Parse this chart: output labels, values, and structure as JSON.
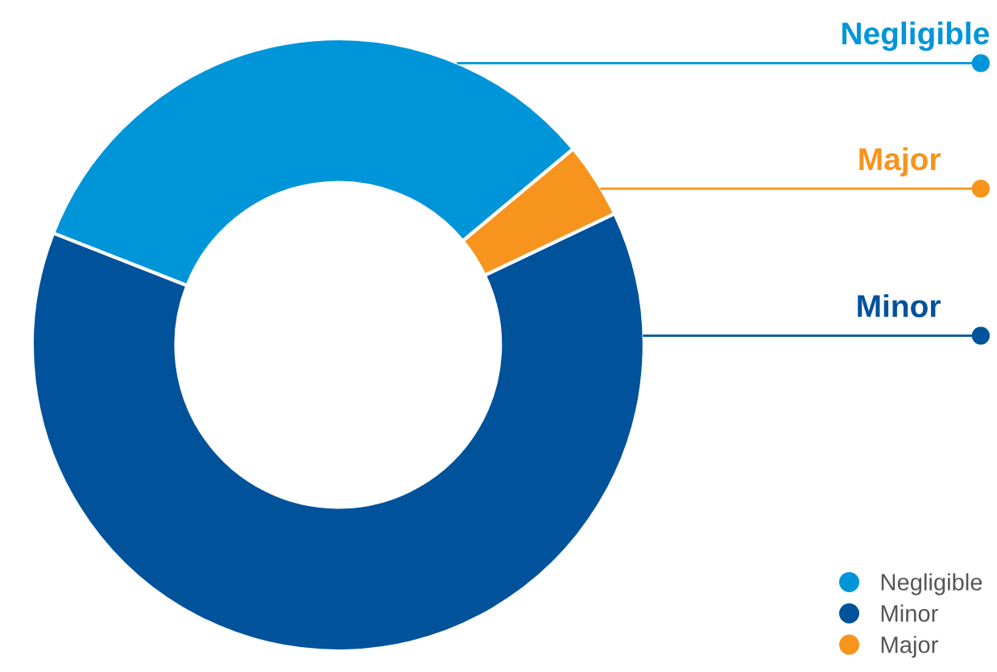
{
  "chart_data": {
    "type": "donut",
    "categories": [
      "Negligible",
      "Minor",
      "Major"
    ],
    "values": [
      33,
      63,
      4
    ],
    "colors": [
      "#0095d9",
      "#00529b",
      "#f7941d"
    ],
    "legend": "bottom right"
  }
}
